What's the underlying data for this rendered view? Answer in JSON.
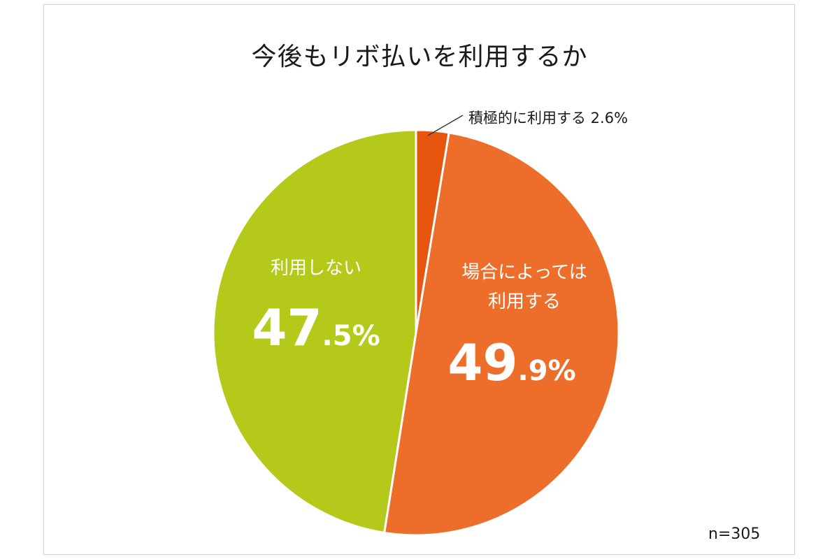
{
  "chart_data": {
    "type": "pie",
    "title": "今後もリボ払いを利用するか",
    "n_label": "n=305",
    "slices": [
      {
        "label": "積極的に利用する 2.6%",
        "value": 2.6,
        "color": "#e8550e",
        "label_style": "callout"
      },
      {
        "label_lines": [
          "場合によっては",
          "利用する"
        ],
        "value": 49.9,
        "value_big": "49",
        "value_small": ".9%",
        "color": "#ed6d2b",
        "label_style": "inside"
      },
      {
        "label_lines": [
          "利用しない"
        ],
        "value": 47.5,
        "value_big": "47",
        "value_small": ".5%",
        "color": "#b5c91a",
        "label_style": "inside"
      }
    ]
  }
}
